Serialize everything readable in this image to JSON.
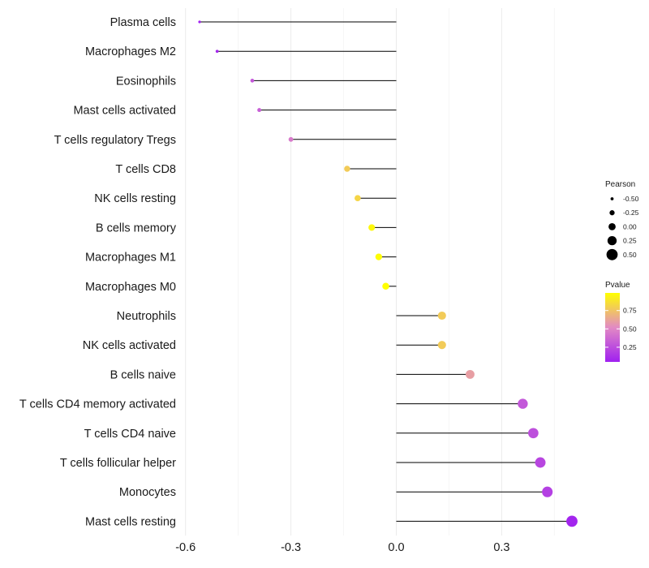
{
  "chart_data": {
    "type": "lollipop",
    "title": "",
    "xlabel": "",
    "ylabel": "",
    "xlim": [
      -0.62,
      0.54
    ],
    "x_ticks": [
      -0.6,
      -0.3,
      0.0,
      0.3
    ],
    "x_tick_labels": [
      "-0.6",
      "-0.3",
      "0.0",
      "0.3"
    ],
    "grid": true,
    "baseline": 0.0,
    "categories": [
      "Plasma cells",
      "Macrophages M2",
      "Eosinophils",
      "Mast cells activated",
      "T cells regulatory  Tregs",
      "T cells CD8",
      "NK cells resting",
      "B cells memory",
      "Macrophages M1",
      "Macrophages M0",
      "Neutrophils",
      "NK cells activated",
      "B cells naive",
      "T cells CD4 memory activated",
      "T cells CD4 naive",
      "T cells follicular helper",
      "Monocytes",
      "Mast cells resting"
    ],
    "pearson": [
      -0.56,
      -0.51,
      -0.41,
      -0.39,
      -0.3,
      -0.14,
      -0.11,
      -0.07,
      -0.05,
      -0.03,
      0.13,
      0.13,
      0.21,
      0.36,
      0.39,
      0.41,
      0.43,
      0.5
    ],
    "pvalue": [
      0.05,
      0.08,
      0.3,
      0.33,
      0.45,
      0.78,
      0.82,
      0.96,
      0.98,
      0.99,
      0.78,
      0.78,
      0.6,
      0.3,
      0.26,
      0.22,
      0.19,
      0.07
    ],
    "legend_size": {
      "title": "Pearson",
      "values": [
        -0.5,
        -0.25,
        0.0,
        0.25,
        0.5
      ],
      "labels": [
        "-0.50",
        "-0.25",
        "0.00",
        "0.25",
        "0.50"
      ]
    },
    "legend_color": {
      "title": "Pvalue",
      "range": [
        0.05,
        0.99
      ],
      "ticks": [
        0.25,
        0.5,
        0.75
      ],
      "tick_labels": [
        "0.25",
        "0.50",
        "0.75"
      ],
      "low_color": "#a020f0",
      "mid_color": "#e28ac4",
      "high_color": "#ffff00"
    },
    "line_color": "#000000",
    "grid_color": "#ebebeb"
  }
}
